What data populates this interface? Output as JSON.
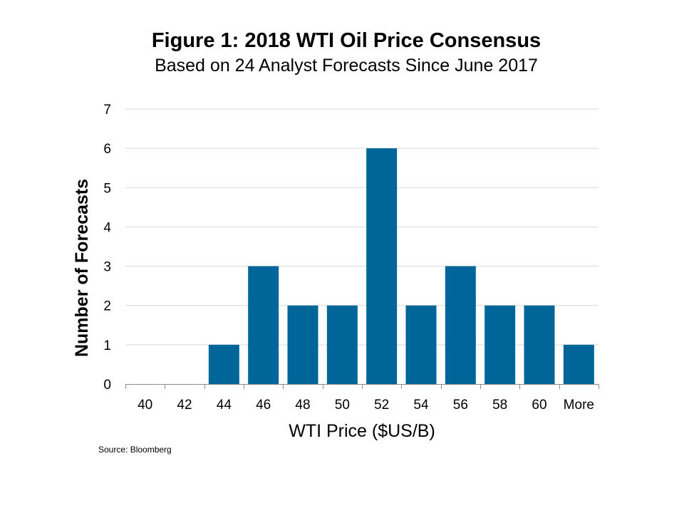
{
  "chart_data": {
    "type": "bar",
    "title": "Figure 1: 2018 WTI Oil Price Consensus",
    "subtitle": "Based on 24 Analyst Forecasts Since June 2017",
    "xlabel": "WTI Price ($US/B)",
    "ylabel": "Number of Forecasts",
    "categories": [
      "40",
      "42",
      "44",
      "46",
      "48",
      "50",
      "52",
      "54",
      "56",
      "58",
      "60",
      "More"
    ],
    "values": [
      0,
      0,
      1,
      3,
      2,
      2,
      6,
      2,
      3,
      2,
      2,
      1
    ],
    "ylim": [
      0,
      7
    ],
    "yticks": [
      "0",
      "1",
      "2",
      "3",
      "4",
      "5",
      "6",
      "7"
    ],
    "grid": true,
    "bar_color": "#006699",
    "source": "Source: Bloomberg"
  }
}
